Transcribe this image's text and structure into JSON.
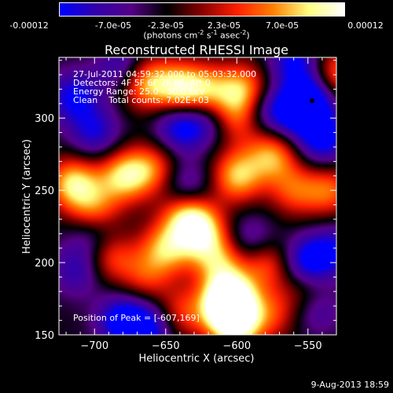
{
  "colorbar": {
    "tick_labels": [
      "-0.00012",
      "-7.0e-05",
      "-2.3e-05",
      "2.3e-05",
      "7.0e-05",
      "0.00012"
    ],
    "units_text": "(photons cm",
    "units_sup1": "-2",
    "units_mid": " s",
    "units_sup2": "-1",
    "units_end": " asec",
    "units_sup3": "-2",
    "units_close": ")",
    "range": [
      -0.00012,
      0.00012
    ],
    "colors": [
      "#0000ff",
      "#3300aa",
      "#550088",
      "#000000",
      "#8a0000",
      "#ff2000",
      "#ff8000",
      "#ffff80",
      "#ffffff"
    ]
  },
  "chart_data": {
    "type": "heatmap",
    "title": "Reconstructed RHESSI Image",
    "xlabel": "Heliocentric X (arcsec)",
    "ylabel": "Heliocentric Y (arcsec)",
    "xlim": [
      -725,
      -530
    ],
    "ylim": [
      150,
      342
    ],
    "x_ticks": [
      -700,
      -650,
      -600,
      -550
    ],
    "x_tick_labels": [
      "−700",
      "−650",
      "−600",
      "−550"
    ],
    "y_ticks": [
      150,
      200,
      250,
      300
    ],
    "y_tick_labels": [
      "150",
      "200",
      "250",
      "300"
    ],
    "annotations": [
      "27-Jul-2011 04:59:32.000 to 05:03:32.000",
      "Detectors: 4F 5F 6F 7F 8F, Att 0",
      "Energy Range: 25.0 - 50.0 keV",
      "Clean    Total counts: 7.02E+03"
    ],
    "peak_label": "Position of Peak = [-607,169]",
    "peak_position": [
      -607,
      169
    ],
    "marker_position": [
      -547,
      312
    ],
    "blobs": [
      {
        "x": -665,
        "y": 325,
        "v": 0.00011
      },
      {
        "x": -640,
        "y": 320,
        "v": 0.00012
      },
      {
        "x": -620,
        "y": 318,
        "v": 9e-05
      },
      {
        "x": -595,
        "y": 320,
        "v": 0.0001
      },
      {
        "x": -600,
        "y": 300,
        "v": 8e-05
      },
      {
        "x": -570,
        "y": 300,
        "v": 6e-05
      },
      {
        "x": -600,
        "y": 260,
        "v": 0.00011
      },
      {
        "x": -575,
        "y": 275,
        "v": 0.0001
      },
      {
        "x": -560,
        "y": 250,
        "v": 7e-05
      },
      {
        "x": -660,
        "y": 265,
        "v": 8e-05
      },
      {
        "x": -680,
        "y": 260,
        "v": 0.00011
      },
      {
        "x": -715,
        "y": 255,
        "v": 0.00012
      },
      {
        "x": -700,
        "y": 235,
        "v": 9e-05
      },
      {
        "x": -690,
        "y": 205,
        "v": 8e-05
      },
      {
        "x": -650,
        "y": 210,
        "v": 0.0001
      },
      {
        "x": -635,
        "y": 235,
        "v": 0.00012
      },
      {
        "x": -625,
        "y": 220,
        "v": 0.00011
      },
      {
        "x": -612,
        "y": 200,
        "v": 9e-05
      },
      {
        "x": -605,
        "y": 175,
        "v": 0.00012
      },
      {
        "x": -607,
        "y": 169,
        "v": 0.00012
      },
      {
        "x": -580,
        "y": 200,
        "v": 8e-05
      },
      {
        "x": -600,
        "y": 155,
        "v": 0.0001
      },
      {
        "x": -640,
        "y": 165,
        "v": 7e-05
      },
      {
        "x": -665,
        "y": 190,
        "v": 6e-05
      },
      {
        "x": -550,
        "y": 180,
        "v": 7e-05
      },
      {
        "x": -575,
        "y": 165,
        "v": 6e-05
      },
      {
        "x": -535,
        "y": 250,
        "v": 8e-05
      },
      {
        "x": -530,
        "y": 330,
        "v": 9e-05
      },
      {
        "x": -548,
        "y": 313,
        "v": -0.00012
      },
      {
        "x": -565,
        "y": 300,
        "v": -0.0001
      },
      {
        "x": -580,
        "y": 305,
        "v": -8e-05
      },
      {
        "x": -540,
        "y": 285,
        "v": -9e-05
      },
      {
        "x": -550,
        "y": 200,
        "v": -0.0001
      },
      {
        "x": -545,
        "y": 170,
        "v": -7e-05
      },
      {
        "x": -590,
        "y": 215,
        "v": -6e-05
      },
      {
        "x": -635,
        "y": 250,
        "v": -8e-05
      },
      {
        "x": -700,
        "y": 220,
        "v": -7e-05
      },
      {
        "x": -712,
        "y": 195,
        "v": -6e-05
      },
      {
        "x": -680,
        "y": 160,
        "v": -0.0001
      },
      {
        "x": -660,
        "y": 155,
        "v": -8e-05
      },
      {
        "x": -715,
        "y": 315,
        "v": -8e-05
      },
      {
        "x": -700,
        "y": 290,
        "v": -7e-05
      },
      {
        "x": -640,
        "y": 295,
        "v": -9e-05
      },
      {
        "x": -620,
        "y": 300,
        "v": -6e-05
      },
      {
        "x": -680,
        "y": 335,
        "v": -7e-05
      },
      {
        "x": -560,
        "y": 340,
        "v": -8e-05
      },
      {
        "x": -530,
        "y": 210,
        "v": -6e-05
      }
    ]
  },
  "footer": {
    "date": "9-Aug-2013 18:59"
  }
}
